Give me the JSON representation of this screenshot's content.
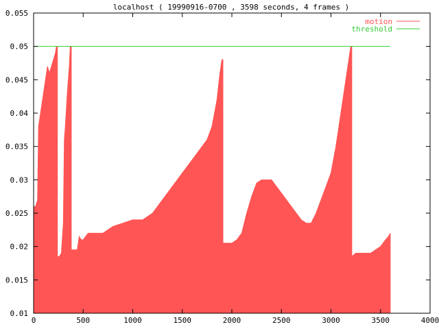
{
  "chart_data": {
    "type": "area",
    "title": "localhost ( 19990916-0700 , 3598 seconds, 4 frames )",
    "xlabel": "",
    "ylabel": "",
    "xlim": [
      0,
      4000
    ],
    "ylim": [
      0.01,
      0.055
    ],
    "xticks": [
      "0",
      "500",
      "1000",
      "1500",
      "2000",
      "2500",
      "3000",
      "3500",
      "4000"
    ],
    "yticks": [
      "0.01",
      "0.015",
      "0.02",
      "0.025",
      "0.03",
      "0.035",
      "0.04",
      "0.045",
      "0.05",
      "0.055"
    ],
    "grid": false,
    "legend_position": "top-right",
    "series": [
      {
        "name": "motion",
        "color": "#ff5555",
        "style": "filled-impulses",
        "x": [
          0,
          20,
          40,
          50,
          60,
          80,
          100,
          120,
          140,
          160,
          180,
          200,
          220,
          230,
          240,
          260,
          280,
          300,
          310,
          320,
          340,
          360,
          370,
          380,
          400,
          440,
          460,
          480,
          500,
          550,
          600,
          700,
          800,
          900,
          1000,
          1100,
          1200,
          1300,
          1400,
          1500,
          1600,
          1700,
          1750,
          1800,
          1850,
          1880,
          1900,
          1910,
          1950,
          2000,
          2050,
          2100,
          2150,
          2200,
          2250,
          2300,
          2350,
          2400,
          2450,
          2500,
          2550,
          2600,
          2650,
          2700,
          2750,
          2800,
          2850,
          2900,
          2950,
          3000,
          3050,
          3100,
          3150,
          3180,
          3200,
          3210,
          3250,
          3300,
          3350,
          3400,
          3450,
          3500,
          3550,
          3580,
          3598
        ],
        "values": [
          0.026,
          0.026,
          0.027,
          0.038,
          0.039,
          0.041,
          0.043,
          0.045,
          0.047,
          0.046,
          0.047,
          0.048,
          0.049,
          0.05,
          0.0185,
          0.0185,
          0.019,
          0.0235,
          0.036,
          0.038,
          0.043,
          0.047,
          0.05,
          0.0195,
          0.0195,
          0.0195,
          0.0215,
          0.021,
          0.021,
          0.022,
          0.022,
          0.022,
          0.023,
          0.0235,
          0.024,
          0.024,
          0.025,
          0.027,
          0.029,
          0.031,
          0.033,
          0.035,
          0.036,
          0.038,
          0.042,
          0.046,
          0.048,
          0.0205,
          0.0205,
          0.0205,
          0.021,
          0.022,
          0.025,
          0.0275,
          0.0295,
          0.03,
          0.03,
          0.03,
          0.029,
          0.028,
          0.027,
          0.026,
          0.025,
          0.024,
          0.0235,
          0.0235,
          0.025,
          0.027,
          0.029,
          0.031,
          0.035,
          0.04,
          0.045,
          0.048,
          0.05,
          0.0185,
          0.019,
          0.019,
          0.019,
          0.019,
          0.0195,
          0.02,
          0.021,
          0.0215,
          0.022
        ]
      },
      {
        "name": "threshold",
        "color": "#33cc33",
        "style": "line",
        "x": [
          0,
          3598
        ],
        "values": [
          0.05,
          0.05
        ]
      }
    ]
  }
}
